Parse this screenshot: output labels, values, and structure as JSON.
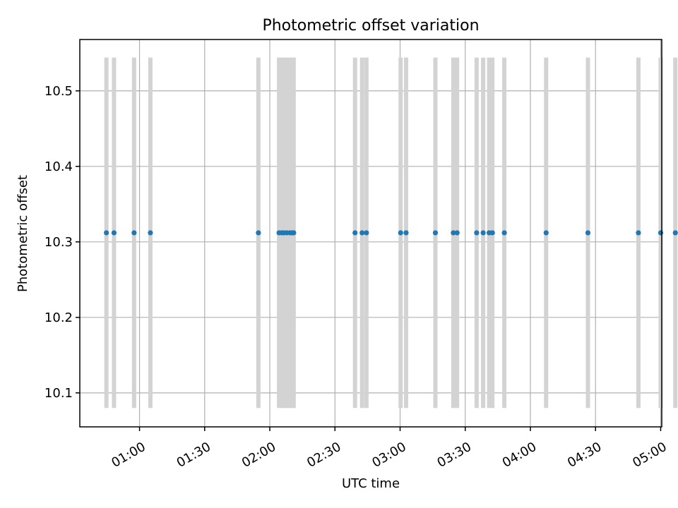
{
  "chart_data": {
    "type": "scatter",
    "title": "Photometric offset variation",
    "xlabel": "UTC time",
    "ylabel": "Photometric offset",
    "xlim": [
      "00:32:30",
      "05:00:30"
    ],
    "ylim": [
      10.055,
      10.568
    ],
    "x_ticks": [
      "01:00",
      "01:30",
      "02:00",
      "02:30",
      "03:00",
      "03:30",
      "04:00",
      "04:30",
      "05:00"
    ],
    "y_ticks": [
      10.1,
      10.2,
      10.3,
      10.4,
      10.5
    ],
    "y_tick_labels": [
      "10.1",
      "10.2",
      "10.3",
      "10.4",
      "10.5"
    ],
    "grid": true,
    "series": [
      {
        "color": "#1f77b4",
        "errorbar_color": "#d3d3d3",
        "x": [
          "00:44:45",
          "00:48:15",
          "00:57:30",
          "01:05:00",
          "01:54:45",
          "02:04:15",
          "02:05:30",
          "02:06:30",
          "02:07:45",
          "02:09:15",
          "02:10:15",
          "02:11:00",
          "02:39:15",
          "02:42:30",
          "02:44:30",
          "03:00:15",
          "03:02:45",
          "03:16:15",
          "03:24:30",
          "03:26:15",
          "03:35:15",
          "03:38:15",
          "03:41:00",
          "03:42:30",
          "03:48:00",
          "04:07:15",
          "04:26:30",
          "04:49:45",
          "05:00:00",
          "05:06:45"
        ],
        "y": [
          10.312,
          10.312,
          10.312,
          10.312,
          10.312,
          10.312,
          10.312,
          10.312,
          10.312,
          10.312,
          10.312,
          10.312,
          10.312,
          10.312,
          10.312,
          10.312,
          10.312,
          10.312,
          10.312,
          10.312,
          10.312,
          10.312,
          10.312,
          10.312,
          10.312,
          10.312,
          10.312,
          10.312,
          10.312,
          10.312
        ],
        "y_err": 0.232
      }
    ]
  }
}
